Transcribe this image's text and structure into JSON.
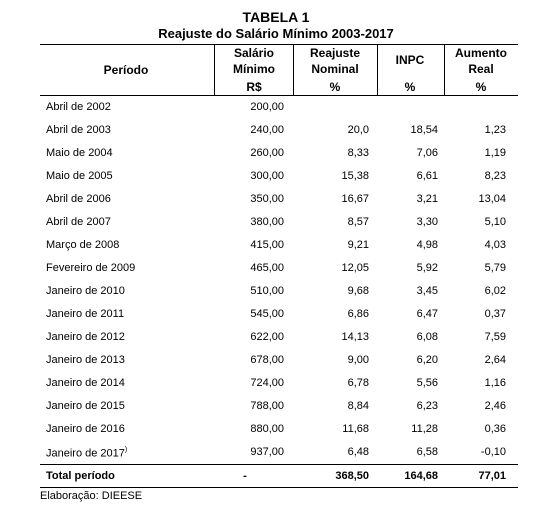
{
  "header": {
    "title": "TABELA 1",
    "subtitle": "Reajuste do Salário Mínimo 2003-2017"
  },
  "table": {
    "columns": [
      {
        "lines": [
          "Período"
        ]
      },
      {
        "lines": [
          "Salário",
          "Mínimo"
        ],
        "unit": "R$"
      },
      {
        "lines": [
          "Reajuste",
          "Nominal"
        ],
        "unit": "%"
      },
      {
        "lines": [
          "INPC"
        ],
        "unit": "%"
      },
      {
        "lines": [
          "Aumento",
          "Real"
        ],
        "unit": "%"
      }
    ],
    "rows": [
      {
        "period": "Abril de 2002",
        "cells": [
          "200,00",
          null,
          null,
          null
        ]
      },
      {
        "period": "Abril de 2003",
        "cells": [
          "240,00",
          "20,0",
          "18,54",
          "1,23"
        ]
      },
      {
        "period": "Maio de 2004",
        "cells": [
          "260,00",
          "8,33",
          "7,06",
          "1,19"
        ]
      },
      {
        "period": "Maio de 2005",
        "cells": [
          "300,00",
          "15,38",
          "6,61",
          "8,23"
        ]
      },
      {
        "period": "Abril de 2006",
        "cells": [
          "350,00",
          "16,67",
          "3,21",
          "13,04"
        ]
      },
      {
        "period": "Abril de 2007",
        "cells": [
          "380,00",
          "8,57",
          "3,30",
          "5,10"
        ]
      },
      {
        "period": "Março de 2008",
        "cells": [
          "415,00",
          "9,21",
          "4,98",
          "4,03"
        ]
      },
      {
        "period": "Fevereiro de 2009",
        "cells": [
          "465,00",
          "12,05",
          "5,92",
          "5,79"
        ]
      },
      {
        "period": "Janeiro de 2010",
        "cells": [
          "510,00",
          "9,68",
          "3,45",
          "6,02"
        ]
      },
      {
        "period": "Janeiro de 2011",
        "cells": [
          "545,00",
          "6,86",
          "6,47",
          "0,37"
        ]
      },
      {
        "period": "Janeiro de 2012",
        "cells": [
          "622,00",
          "14,13",
          "6,08",
          "7,59"
        ]
      },
      {
        "period": "Janeiro de 2013",
        "cells": [
          "678,00",
          "9,00",
          "6,20",
          "2,64"
        ]
      },
      {
        "period": "Janeiro de 2014",
        "cells": [
          "724,00",
          "6,78",
          "5,56",
          "1,16"
        ]
      },
      {
        "period": "Janeiro de 2015",
        "cells": [
          "788,00",
          "8,84",
          "6,23",
          "2,46"
        ]
      },
      {
        "period": "Janeiro de 2016",
        "cells": [
          "880,00",
          "11,68",
          "11,28",
          "0,36"
        ]
      },
      {
        "period": "Janeiro de 2017",
        "sup": ")",
        "cells": [
          "937,00",
          "6,48",
          "6,58",
          "-0,10"
        ]
      }
    ],
    "total": {
      "period": "Total período",
      "cells": [
        "-",
        "368,50",
        "164,68",
        "77,01"
      ]
    }
  },
  "footer": {
    "source": "Elaboração: DIEESE"
  }
}
